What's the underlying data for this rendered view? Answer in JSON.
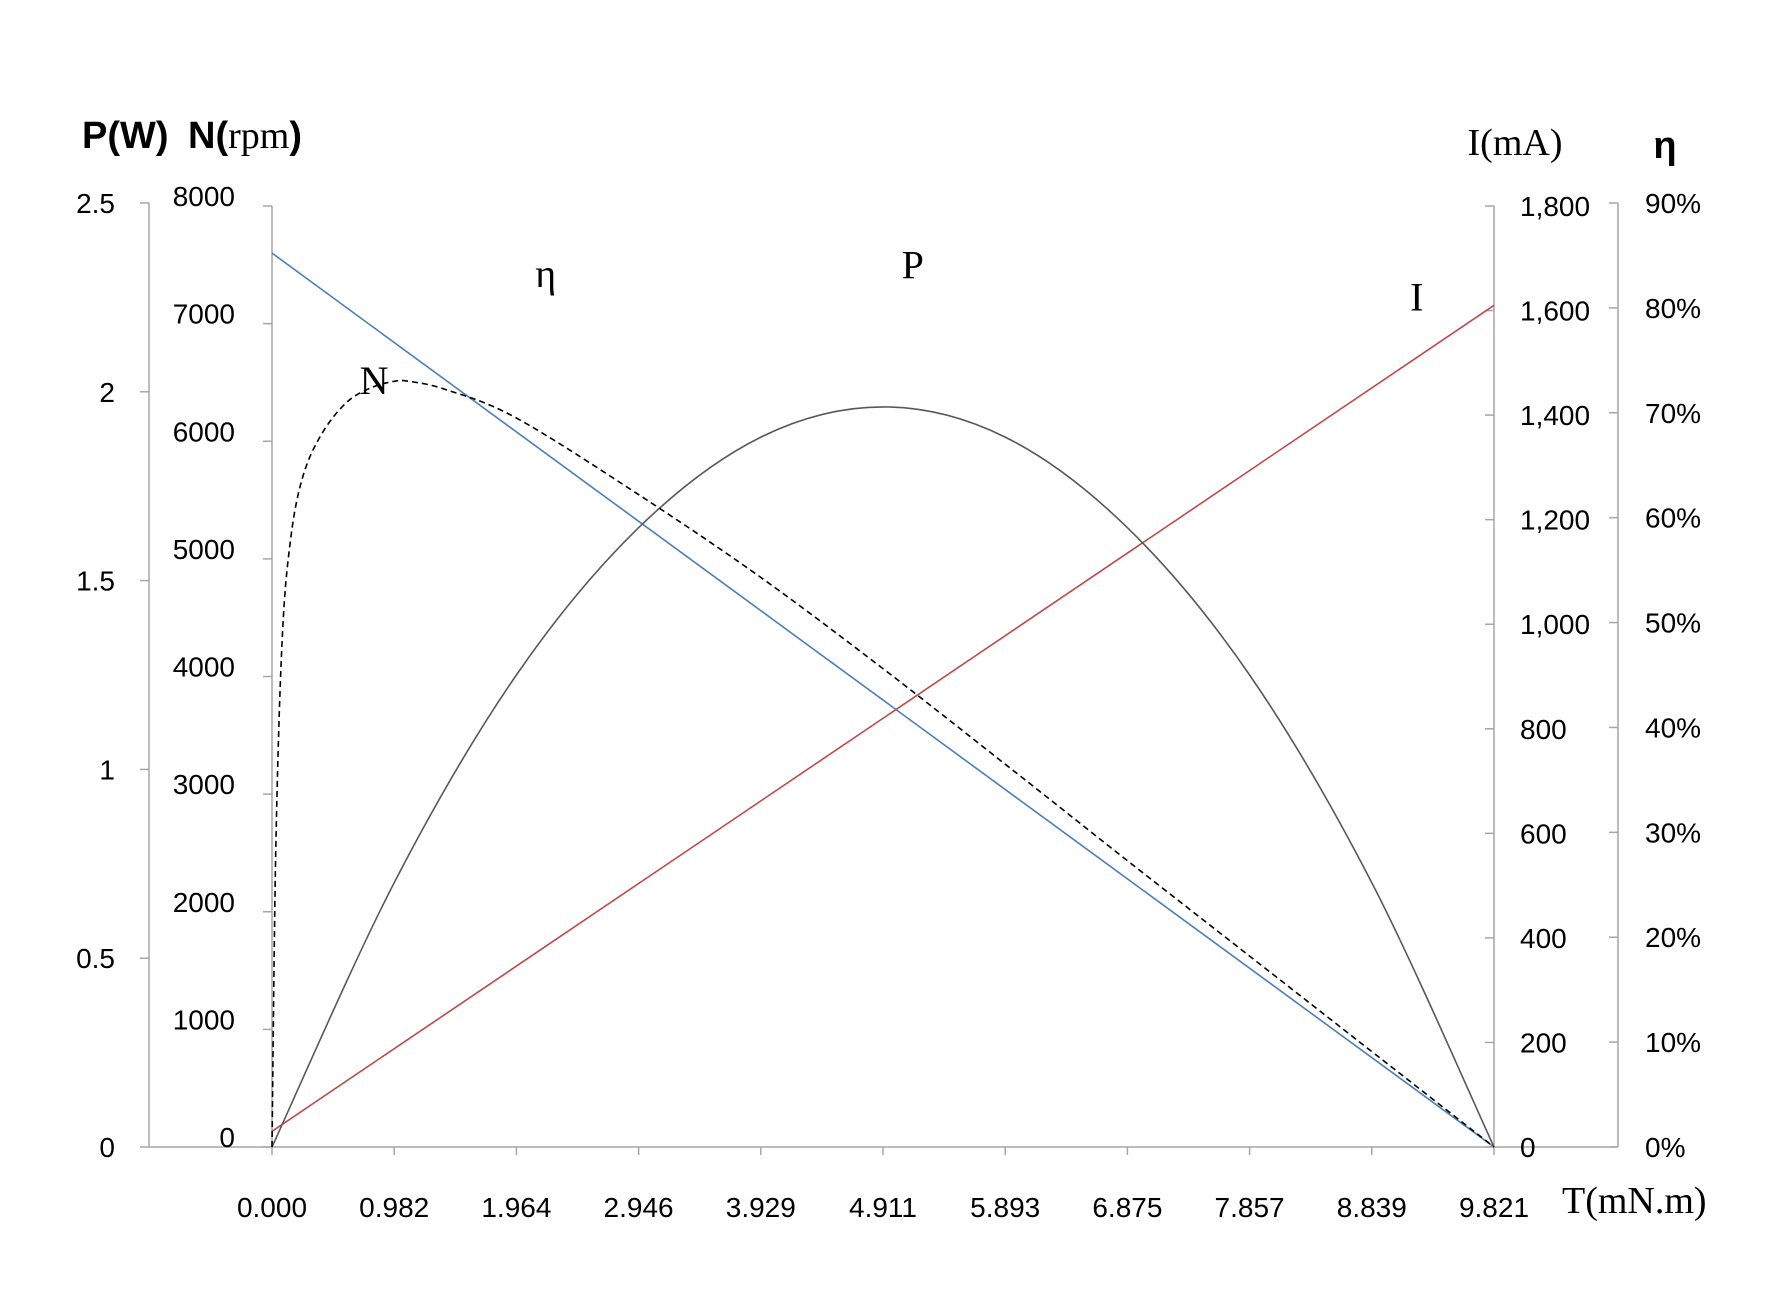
{
  "chart_data": {
    "type": "line",
    "x_axis": {
      "label": "T(mN.m)",
      "range": [
        0,
        9.821
      ],
      "ticks": [
        "0.000",
        "0.982",
        "1.964",
        "2.946",
        "3.929",
        "4.911",
        "5.893",
        "6.875",
        "7.857",
        "8.839",
        "9.821"
      ]
    },
    "y_axes": {
      "P": {
        "label_bold": "P(W)",
        "range": [
          0,
          2.5
        ],
        "ticks": [
          "0",
          "0.5",
          "1",
          "1.5",
          "2",
          "2.5"
        ]
      },
      "N": {
        "label_bold": "N(",
        "label_serif": "rpm",
        "label_close": ")",
        "range": [
          0,
          8000
        ],
        "ticks": [
          "0",
          "1000",
          "2000",
          "3000",
          "4000",
          "5000",
          "6000",
          "7000",
          "8000"
        ]
      },
      "I": {
        "label": "I(mA)",
        "range": [
          0,
          1800
        ],
        "ticks": [
          "0",
          "200",
          "400",
          "600",
          "800",
          "1,000",
          "1,200",
          "1,400",
          "1,600",
          "1,800"
        ]
      },
      "eta": {
        "label": "η",
        "range": [
          0,
          90
        ],
        "ticks": [
          "0%",
          "10%",
          "20%",
          "30%",
          "40%",
          "50%",
          "60%",
          "70%",
          "80%",
          "90%"
        ]
      }
    },
    "series": [
      {
        "name": "N",
        "axis": "N",
        "color": "#4a7ebb",
        "style": "solid",
        "x": [
          0,
          9.821
        ],
        "y": [
          7600,
          0
        ]
      },
      {
        "name": "I",
        "axis": "I",
        "color": "#be4b48",
        "style": "solid",
        "x": [
          0,
          9.821
        ],
        "y": [
          30,
          1610
        ]
      },
      {
        "name": "P",
        "axis": "P",
        "color": "#595959",
        "style": "solid",
        "x": [
          0,
          0.982,
          1.964,
          2.946,
          3.929,
          4.911,
          5.893,
          6.875,
          7.857,
          8.839,
          9.821
        ],
        "y": [
          0,
          0.7,
          1.25,
          1.64,
          1.88,
          1.96,
          1.88,
          1.64,
          1.25,
          0.7,
          0
        ]
      },
      {
        "name": "η",
        "axis": "eta",
        "color": "#000000",
        "style": "dashed",
        "x": [
          0,
          0.03,
          0.08,
          0.15,
          0.25,
          0.4,
          0.6,
          0.8,
          0.982,
          1.1,
          1.4,
          1.964,
          2.946,
          3.929,
          4.911,
          5.893,
          6.875,
          7.857,
          8.839,
          9.4,
          9.821
        ],
        "y": [
          0,
          28,
          48,
          58,
          64,
          68,
          71,
          72.4,
          73.0,
          73.0,
          72.2,
          69.5,
          62.2,
          54.3,
          45.6,
          36.5,
          27.3,
          18.2,
          9.1,
          3.9,
          0
        ]
      }
    ],
    "annotations": [
      {
        "text": "η",
        "x": 2.2,
        "on": "eta",
        "value": 82
      },
      {
        "text": "P",
        "x": 5.15,
        "on": "P",
        "value": 2.3
      },
      {
        "text": "I",
        "x": 9.2,
        "on": "I",
        "value": 1600
      },
      {
        "text": "N",
        "x": 0.82,
        "on": "N",
        "value": 6400
      }
    ],
    "grid": false,
    "legend": "none"
  }
}
